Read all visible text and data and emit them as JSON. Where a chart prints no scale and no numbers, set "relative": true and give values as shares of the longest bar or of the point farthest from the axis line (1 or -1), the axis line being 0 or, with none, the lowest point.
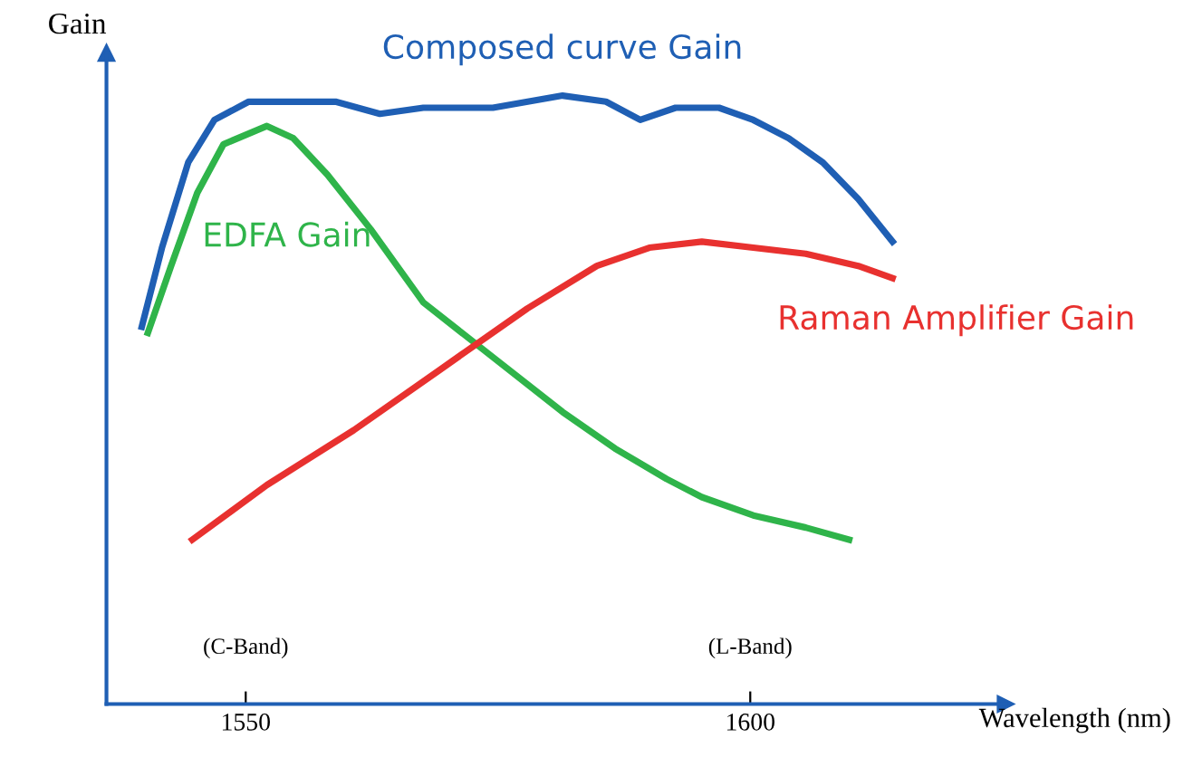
{
  "chart_data": {
    "type": "line",
    "relative": true,
    "xlabel": "Wavelength (nm)",
    "ylabel": "Gain",
    "xlim": [
      1536.2,
      1625.3
    ],
    "xticks": [
      1550,
      1600
    ],
    "grid": false,
    "legend": false,
    "marker": "none",
    "line_style": "solid",
    "annotations": [
      "(C-Band)",
      "(L-Band)"
    ],
    "series": [
      {
        "name": "Composed curve Gain",
        "color": "#1f5fb4",
        "x": [
          1539.7,
          1541.7,
          1544.3,
          1546.9,
          1550.3,
          1554.6,
          1558.9,
          1563.3,
          1567.6,
          1574.5,
          1581.4,
          1585.7,
          1589.1,
          1592.6,
          1596.9,
          1600.3,
          1603.8,
          1607.2,
          1610.7,
          1614.1
        ],
        "values": [
          0.62,
          0.75,
          0.89,
          0.96,
          0.99,
          0.99,
          0.99,
          0.97,
          0.98,
          0.98,
          1.0,
          0.99,
          0.96,
          0.98,
          0.98,
          0.96,
          0.93,
          0.89,
          0.83,
          0.76
        ]
      },
      {
        "name": "EDFA Gain",
        "color": "#2fb44a",
        "x": [
          1540.3,
          1542.6,
          1545.2,
          1547.8,
          1552.1,
          1554.7,
          1558.1,
          1562.4,
          1567.6,
          1574.5,
          1581.4,
          1586.6,
          1591.7,
          1595.2,
          1600.3,
          1605.5,
          1609.8
        ],
        "values": [
          0.61,
          0.72,
          0.84,
          0.92,
          0.95,
          0.93,
          0.87,
          0.78,
          0.66,
          0.57,
          0.48,
          0.42,
          0.37,
          0.34,
          0.31,
          0.29,
          0.27
        ]
      },
      {
        "name": "Raman Amplifier Gain",
        "color": "#e8312f",
        "x": [
          1544.7,
          1552.1,
          1560.7,
          1569.3,
          1577.9,
          1584.8,
          1590.0,
          1595.2,
          1600.3,
          1605.5,
          1610.7,
          1614.1
        ],
        "values": [
          0.27,
          0.36,
          0.45,
          0.55,
          0.65,
          0.72,
          0.75,
          0.76,
          0.75,
          0.74,
          0.72,
          0.7
        ]
      }
    ]
  }
}
